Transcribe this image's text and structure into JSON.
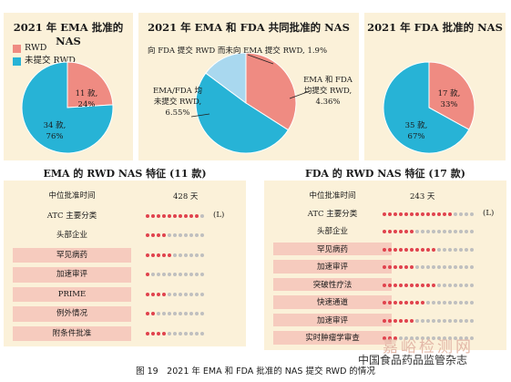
{
  "colors": {
    "rwd": "#ef8b82",
    "non_rwd": "#27b3d6",
    "third": "#a9d8ef",
    "panel": "#fbf1d9",
    "pink": "#f6cbbe",
    "dot_red": "#e0424d",
    "dot_grey": "#bfbfbf"
  },
  "chart_data": [
    {
      "type": "pie",
      "title": "2021 年 EMA 批准的 NAS",
      "legend": [
        "RWD",
        "未提交 RWD"
      ],
      "slices": [
        {
          "name": "RWD",
          "count_label": "11 款,",
          "pct_label": "24%",
          "value": 24
        },
        {
          "name": "未提交 RWD",
          "count_label": "34 款,",
          "pct_label": "76%",
          "value": 76
        }
      ]
    },
    {
      "type": "pie",
      "title": "2021 年 EMA 和 FDA 共同批准的 NAS",
      "slices": [
        {
          "name": "EMA 和 FDA 均提交 RWD",
          "label_lines": [
            "EMA 和 FDA",
            "均提交 RWD,",
            "4.36%"
          ],
          "value": 4.36
        },
        {
          "name": "EMA/FDA 均未提交 RWD",
          "label_lines": [
            "EMA/FDA 均",
            "未提交 RWD,",
            "6.55%"
          ],
          "value": 6.55
        },
        {
          "name": "向 FDA 提交 RWD 而未向 EMA 提交 RWD",
          "label_lines": [
            "向 FDA 提交 RWD 而未向 EMA 提交 RWD, 1.9%"
          ],
          "value": 1.9
        }
      ]
    },
    {
      "type": "pie",
      "title": "2021 年 FDA 批准的 NAS",
      "slices": [
        {
          "name": "RWD",
          "count_label": "17 款,",
          "pct_label": "33%",
          "value": 33
        },
        {
          "name": "未提交 RWD",
          "count_label": "35 款,",
          "pct_label": "67%",
          "value": 67
        }
      ]
    },
    {
      "type": "table",
      "title": "EMA 的 RWD NAS 特征 (11 款)",
      "rows": [
        {
          "label": "中位批准时间",
          "text": "428 天"
        },
        {
          "label": "ATC 主要分类",
          "dots_red": 10,
          "dots_grey": 1,
          "suffix": "(L)"
        },
        {
          "label": "头部企业",
          "dots_red": 4,
          "dots_grey": 7
        },
        {
          "label": "罕见病药",
          "dots_red": 5,
          "dots_grey": 6,
          "highlight": true
        },
        {
          "label": "加速审评",
          "dots_red": 1,
          "dots_grey": 10,
          "highlight": true
        },
        {
          "label": "PRIME",
          "dots_red": 4,
          "dots_grey": 7,
          "highlight": true
        },
        {
          "label": "例外情况",
          "dots_red": 2,
          "dots_grey": 9,
          "highlight": true
        },
        {
          "label": "附条件批准",
          "dots_red": 4,
          "dots_grey": 7,
          "highlight": true
        }
      ]
    },
    {
      "type": "table",
      "title": "FDA 的 RWD NAS 特征 (17 款)",
      "rows": [
        {
          "label": "中位批准时间",
          "text": "243 天"
        },
        {
          "label": "ATC 主要分类",
          "dots_red": 13,
          "dots_grey": 4,
          "suffix": "(L)"
        },
        {
          "label": "头部企业",
          "dots_red": 6,
          "dots_grey": 11
        },
        {
          "label": "罕见病药",
          "dots_red": 10,
          "dots_grey": 7,
          "highlight": true
        },
        {
          "label": "加速审评",
          "dots_red": 6,
          "dots_grey": 11,
          "highlight": true
        },
        {
          "label": "突破性疗法",
          "dots_red": 10,
          "dots_grey": 7,
          "highlight": true
        },
        {
          "label": "快速通道",
          "dots_red": 8,
          "dots_grey": 9,
          "highlight": true
        },
        {
          "label": "加速审评",
          "dots_red": 6,
          "dots_grey": 11,
          "highlight": true
        },
        {
          "label": "实时肿瘤学审查",
          "dots_red": 3,
          "dots_grey": 14,
          "highlight": true
        }
      ]
    }
  ],
  "caption": "图 19　2021 年 EMA 和 FDA 批准的 NAS 提交 RWD 的情况",
  "watermark": {
    "line1": "嘉峪检测网",
    "line2": "中国食品药品监管杂志"
  }
}
